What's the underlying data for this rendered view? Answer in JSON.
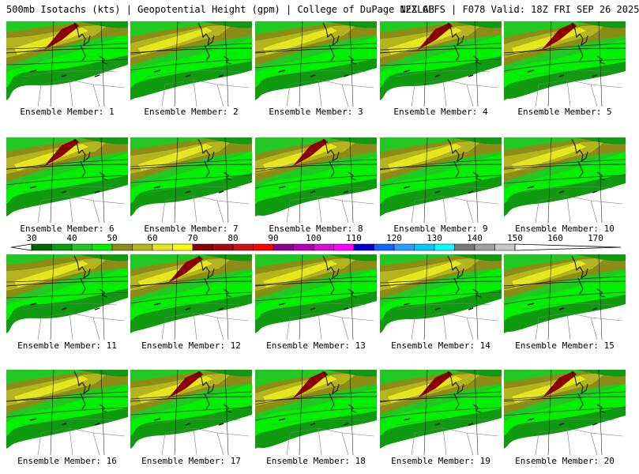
{
  "header": {
    "left": "500mb Isotachs (kts) | Geopotential Height (gpm) | College of DuPage NEXLAB",
    "right": "12Z GEFS | F078 Valid: 18Z FRI SEP 26 2025"
  },
  "colorbar": {
    "labels": [
      "30",
      "40",
      "50",
      "60",
      "70",
      "80",
      "90",
      "100",
      "110",
      "120",
      "130",
      "140",
      "150",
      "160",
      "170"
    ],
    "colors": [
      "#006400",
      "#109a10",
      "#22c822",
      "#00f000",
      "#8c8c16",
      "#b4b41e",
      "#e6e61e",
      "#ffff00",
      "#8b0000",
      "#a50a0a",
      "#c81414",
      "#ff0000",
      "#8b008b",
      "#b400b4",
      "#d20fd2",
      "#ff00ff",
      "#0000c8",
      "#1464ff",
      "#28a0ff",
      "#00c8ff",
      "#00ffff",
      "#787878",
      "#a0a0a0",
      "#c8c8c8"
    ]
  },
  "members": [
    {
      "label": "Ensemble Member: 1",
      "jet": 1
    },
    {
      "label": "Ensemble Member: 2",
      "jet": 0
    },
    {
      "label": "Ensemble Member: 3",
      "jet": 0
    },
    {
      "label": "Ensemble Member: 4",
      "jet": 1
    },
    {
      "label": "Ensemble Member: 5",
      "jet": 1
    },
    {
      "label": "Ensemble Member: 6",
      "jet": 1
    },
    {
      "label": "Ensemble Member: 7",
      "jet": 0
    },
    {
      "label": "Ensemble Member: 8",
      "jet": 1
    },
    {
      "label": "Ensemble Member: 9",
      "jet": 0
    },
    {
      "label": "Ensemble Member: 10",
      "jet": 0
    },
    {
      "label": "Ensemble Member: 11",
      "jet": 0
    },
    {
      "label": "Ensemble Member: 12",
      "jet": 1
    },
    {
      "label": "Ensemble Member: 13",
      "jet": 0
    },
    {
      "label": "Ensemble Member: 14",
      "jet": 0
    },
    {
      "label": "Ensemble Member: 15",
      "jet": 0
    },
    {
      "label": "Ensemble Member: 16",
      "jet": 0
    },
    {
      "label": "Ensemble Member: 17",
      "jet": 1
    },
    {
      "label": "Ensemble Member: 18",
      "jet": 1
    },
    {
      "label": "Ensemble Member: 19",
      "jet": 1
    },
    {
      "label": "Ensemble Member: 20",
      "jet": 1
    }
  ]
}
